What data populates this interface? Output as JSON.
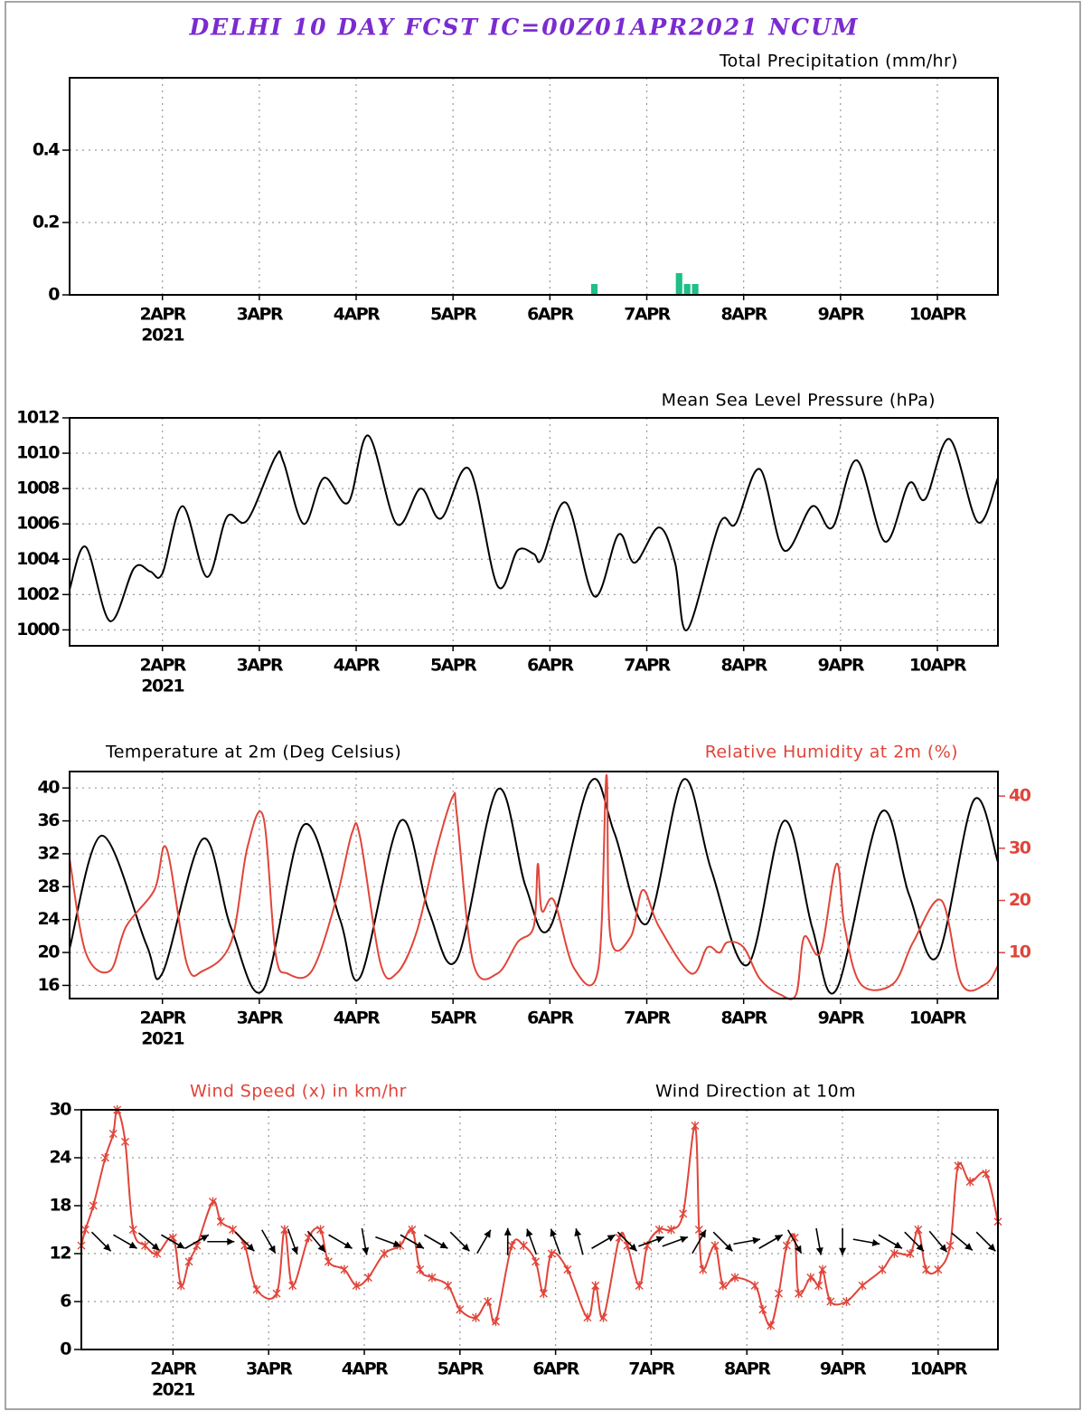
{
  "title": "DELHI 10 DAY FCST IC=00Z01APR2021 NCUM",
  "chart_data": [
    {
      "type": "bar",
      "series": [
        {
          "name": "Total Precipitation (mm/hr)",
          "color": "#1fbf86",
          "x": [
            131,
            152,
            154,
            156
          ],
          "values": [
            0.03,
            0.06,
            0.03,
            0.03
          ]
        }
      ],
      "xlim": [
        1,
        231
      ],
      "xticks": [
        {
          "value": 24,
          "label": "2APR"
        },
        {
          "value": 48,
          "label": "3APR"
        },
        {
          "value": 72,
          "label": "4APR"
        },
        {
          "value": 96,
          "label": "5APR"
        },
        {
          "value": 120,
          "label": "6APR"
        },
        {
          "value": 144,
          "label": "7APR"
        },
        {
          "value": 168,
          "label": "8APR"
        },
        {
          "value": 192,
          "label": "9APR"
        },
        {
          "value": 216,
          "label": "10APR"
        }
      ],
      "year_label": "2021",
      "ylim": [
        0,
        0.6
      ],
      "yticks": [
        0,
        0.2,
        0.4
      ],
      "grid": true
    },
    {
      "type": "line",
      "series": [
        {
          "name": "Mean Sea Level Pressure (hPa)",
          "color": "#000000",
          "x": [
            1,
            5,
            11,
            17,
            21,
            24,
            29,
            35,
            40,
            45,
            52,
            54,
            59,
            64,
            70,
            75,
            82,
            88,
            93,
            100,
            107,
            112,
            116,
            118,
            124,
            131,
            137,
            141,
            147,
            151,
            154,
            162,
            166,
            172,
            178,
            185,
            190,
            196,
            203,
            209,
            213,
            219,
            226,
            231
          ],
          "values": [
            1002.3,
            1004.7,
            1000.5,
            1003.5,
            1003.3,
            1003.2,
            1007,
            1003,
            1006.4,
            1006.2,
            1009.8,
            1009.5,
            1006,
            1008.6,
            1007.2,
            1011,
            1006,
            1008,
            1006.3,
            1009.1,
            1002.5,
            1004.5,
            1004.3,
            1004,
            1007.2,
            1001.9,
            1005.4,
            1003.8,
            1005.8,
            1003.8,
            1000,
            1006,
            1006,
            1009.1,
            1004.5,
            1007,
            1005.8,
            1009.6,
            1005,
            1008.3,
            1007.4,
            1010.8,
            1006.1,
            1008.6
          ]
        }
      ],
      "xlim": [
        1,
        231
      ],
      "xticks": [
        {
          "value": 24,
          "label": "2APR"
        },
        {
          "value": 48,
          "label": "3APR"
        },
        {
          "value": 72,
          "label": "4APR"
        },
        {
          "value": 96,
          "label": "5APR"
        },
        {
          "value": 120,
          "label": "6APR"
        },
        {
          "value": 144,
          "label": "7APR"
        },
        {
          "value": 168,
          "label": "8APR"
        },
        {
          "value": 192,
          "label": "9APR"
        },
        {
          "value": 216,
          "label": "10APR"
        }
      ],
      "year_label": "2021",
      "ylim": [
        999.1,
        1012
      ],
      "yticks": [
        1000,
        1002,
        1004,
        1006,
        1008,
        1010,
        1012
      ],
      "grid": true
    },
    {
      "type": "line",
      "series": [
        {
          "name": "Temperature at 2m (Deg Celsius)",
          "color": "#000000",
          "x": [
            1,
            9,
            20,
            24,
            34,
            41,
            49,
            59,
            68,
            73,
            83,
            90,
            97,
            107,
            114,
            120,
            130,
            136,
            144,
            153,
            160,
            169,
            178,
            185,
            191,
            202,
            209,
            216,
            225,
            231
          ],
          "values": [
            20.5,
            34.2,
            21,
            17.5,
            33.8,
            23,
            15.5,
            35.5,
            24,
            17,
            36,
            25,
            19.2,
            39.8,
            28,
            23,
            40.7,
            34.5,
            23.5,
            41,
            30,
            18.5,
            36,
            23,
            15.5,
            37,
            27,
            19.5,
            38.5,
            31
          ]
        },
        {
          "name": "Relative Humidity at 2m (%)",
          "color": "#e0453a",
          "axis": "y2",
          "x": [
            1,
            5,
            11,
            15,
            22,
            25,
            30,
            34,
            41,
            45,
            49,
            52,
            55,
            61,
            67,
            71,
            73,
            78,
            82,
            87,
            92,
            96,
            97,
            101,
            107,
            112,
            116,
            117,
            118,
            121,
            126,
            132,
            134,
            135,
            140,
            143,
            147,
            155,
            159,
            162,
            164,
            168,
            172,
            177,
            181,
            183,
            187,
            191,
            193,
            197,
            205,
            210,
            217,
            222,
            228,
            231
          ],
          "values": [
            28,
            10,
            6.5,
            15,
            22,
            30,
            8,
            6.5,
            12,
            30,
            36,
            10,
            6,
            6.5,
            20,
            33,
            32,
            8,
            6,
            14,
            30,
            40,
            36,
            8,
            6,
            12,
            15,
            27,
            18,
            20,
            7,
            7,
            44,
            13,
            13,
            22,
            15,
            6,
            11,
            10,
            12,
            11,
            5,
            2,
            2,
            13,
            10,
            27,
            15,
            4,
            4,
            12,
            20,
            4,
            4,
            7.5
          ]
        }
      ],
      "xlim": [
        1,
        231
      ],
      "xticks": [
        {
          "value": 24,
          "label": "2APR"
        },
        {
          "value": 48,
          "label": "3APR"
        },
        {
          "value": 72,
          "label": "4APR"
        },
        {
          "value": 96,
          "label": "5APR"
        },
        {
          "value": 120,
          "label": "6APR"
        },
        {
          "value": 144,
          "label": "7APR"
        },
        {
          "value": 168,
          "label": "8APR"
        },
        {
          "value": 192,
          "label": "9APR"
        },
        {
          "value": 216,
          "label": "10APR"
        }
      ],
      "year_label": "2021",
      "ylim": [
        14.4,
        42
      ],
      "yticks": [
        16,
        20,
        24,
        28,
        32,
        36,
        40
      ],
      "y2lim": [
        1.2,
        44.7
      ],
      "y2ticks": [
        10,
        20,
        30,
        40
      ],
      "grid": true
    },
    {
      "type": "line",
      "series": [
        {
          "name": "Wind Speed (x) in km/hr",
          "color": "#e0453a",
          "marker": "x",
          "x": [
            1,
            2,
            4,
            7,
            9,
            10,
            12,
            14,
            17,
            20,
            24,
            26,
            28,
            30,
            34,
            36,
            39,
            42,
            45,
            50,
            52,
            54,
            58,
            61,
            63,
            67,
            70,
            73,
            77,
            81,
            84,
            86,
            89,
            93,
            96,
            100,
            103,
            105,
            109,
            112,
            115,
            117,
            119,
            123,
            128,
            130,
            132,
            136,
            138,
            141,
            143,
            146,
            149,
            152,
            155,
            156,
            157,
            160,
            162,
            165,
            170,
            172,
            174,
            176,
            178,
            180,
            181,
            184,
            186,
            187,
            189,
            193,
            197,
            202,
            205,
            209,
            211,
            213,
            216,
            219,
            221,
            224,
            228,
            231
          ],
          "values": [
            13,
            15,
            18,
            24,
            27,
            30,
            26,
            15,
            13,
            12,
            14,
            8,
            11,
            13,
            18.5,
            16,
            15,
            13,
            7.5,
            7,
            15,
            8,
            14,
            15,
            11,
            10,
            8,
            9,
            12,
            13,
            15,
            10,
            9,
            8,
            5,
            4,
            6,
            3.5,
            13,
            13,
            11,
            7,
            12,
            10,
            4,
            8,
            4,
            14,
            13,
            8,
            13,
            15,
            15,
            17,
            28,
            15,
            10,
            13,
            8,
            9,
            8,
            5,
            3,
            7,
            13,
            14,
            7,
            9,
            8,
            10,
            6,
            6,
            8,
            10,
            12,
            12,
            15,
            10,
            10,
            13,
            23,
            21,
            22,
            16
          ]
        },
        {
          "name": "Wind Direction at 10m",
          "color": "#000000",
          "type": "arrow",
          "x": [
            6,
            12,
            18,
            24,
            30,
            36,
            42,
            48,
            54,
            60,
            66,
            72,
            78,
            84,
            90,
            96,
            102,
            108,
            114,
            120,
            126,
            132,
            138,
            144,
            150,
            156,
            162,
            168,
            174,
            180,
            186,
            192,
            198,
            204,
            210,
            216,
            222,
            228
          ],
          "values": [
            315,
            300,
            310,
            300,
            240,
            270,
            315,
            330,
            340,
            320,
            300,
            350,
            290,
            300,
            300,
            315,
            210,
            180,
            160,
            160,
            165,
            240,
            315,
            250,
            250,
            210,
            315,
            260,
            240,
            330,
            350,
            0,
            280,
            300,
            315,
            320,
            310,
            315
          ]
        }
      ],
      "xlim": [
        1,
        231
      ],
      "xticks": [
        {
          "value": 24,
          "label": "2APR"
        },
        {
          "value": 48,
          "label": "3APR"
        },
        {
          "value": 72,
          "label": "4APR"
        },
        {
          "value": 96,
          "label": "5APR"
        },
        {
          "value": 120,
          "label": "6APR"
        },
        {
          "value": 144,
          "label": "7APR"
        },
        {
          "value": 168,
          "label": "8APR"
        },
        {
          "value": 192,
          "label": "9APR"
        },
        {
          "value": 216,
          "label": "10APR"
        }
      ],
      "year_label": "2021",
      "ylim": [
        0,
        30
      ],
      "yticks": [
        0,
        6,
        12,
        18,
        24,
        30
      ],
      "grid": true
    }
  ]
}
